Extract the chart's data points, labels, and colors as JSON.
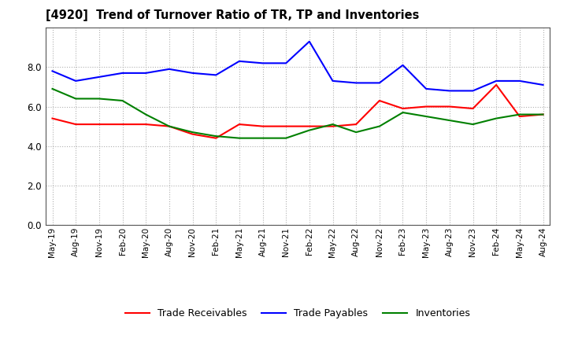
{
  "title": "[4920]  Trend of Turnover Ratio of TR, TP and Inventories",
  "x_labels": [
    "May-19",
    "Aug-19",
    "Nov-19",
    "Feb-20",
    "May-20",
    "Aug-20",
    "Nov-20",
    "Feb-21",
    "May-21",
    "Aug-21",
    "Nov-21",
    "Feb-22",
    "May-22",
    "Aug-22",
    "Nov-22",
    "Feb-23",
    "May-23",
    "Aug-23",
    "Nov-23",
    "Feb-24",
    "May-24",
    "Aug-24"
  ],
  "trade_receivables": [
    5.4,
    5.1,
    5.1,
    5.1,
    5.1,
    5.0,
    4.6,
    4.4,
    5.1,
    5.0,
    5.0,
    5.0,
    5.0,
    5.1,
    6.3,
    5.9,
    6.0,
    6.0,
    5.9,
    7.1,
    5.5,
    5.6
  ],
  "trade_payables": [
    7.8,
    7.3,
    7.5,
    7.7,
    7.7,
    7.9,
    7.7,
    7.6,
    8.3,
    8.2,
    8.2,
    9.3,
    7.3,
    7.2,
    7.2,
    8.1,
    6.9,
    6.8,
    6.8,
    7.3,
    7.3,
    7.1
  ],
  "inventories": [
    6.9,
    6.4,
    6.4,
    6.3,
    5.6,
    5.0,
    4.7,
    4.5,
    4.4,
    4.4,
    4.4,
    4.8,
    5.1,
    4.7,
    5.0,
    5.7,
    5.5,
    5.3,
    5.1,
    5.4,
    5.6,
    5.6
  ],
  "ylim": [
    0.0,
    10.0
  ],
  "yticks": [
    0.0,
    2.0,
    4.0,
    6.0,
    8.0
  ],
  "colors": {
    "trade_receivables": "#ff0000",
    "trade_payables": "#0000ff",
    "inventories": "#008000"
  },
  "legend_labels": [
    "Trade Receivables",
    "Trade Payables",
    "Inventories"
  ],
  "background_color": "#ffffff",
  "grid_color": "#b0b0b0"
}
